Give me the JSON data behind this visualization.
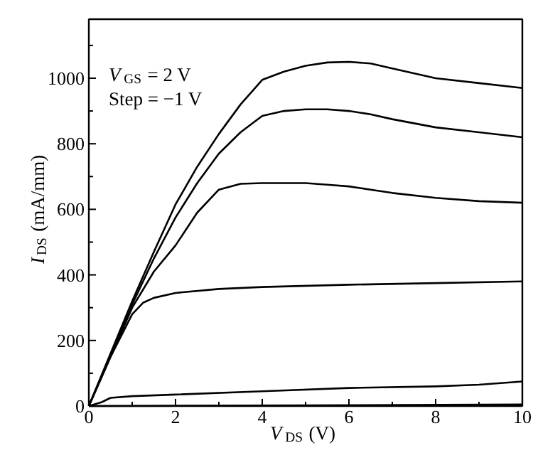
{
  "chart_data": {
    "type": "line",
    "xlabel": "V$_{DS}$ (V)",
    "ylabel": "I$_{DS}$ (mA/mm)",
    "annotations": [
      "V$_{GS}$ = 2 V",
      "Step = −1 V"
    ],
    "xlim": [
      0,
      10
    ],
    "ylim": [
      0,
      1180
    ],
    "xticks": [
      0,
      {
        "value": 1,
        "label": null
      },
      2,
      {
        "value": 3,
        "label": null
      },
      4,
      {
        "value": 5,
        "label": null
      },
      6,
      {
        "value": 7,
        "label": null
      },
      8,
      {
        "value": 9,
        "label": null
      },
      10
    ],
    "yticks": [
      0,
      {
        "value": 100,
        "label": null
      },
      200,
      {
        "value": 300,
        "label": null
      },
      400,
      {
        "value": 500,
        "label": null
      },
      600,
      {
        "value": 700,
        "label": null
      },
      800,
      {
        "value": 900,
        "label": null
      },
      1000,
      {
        "value": 1100,
        "label": null
      }
    ],
    "grid": false,
    "marker": "none",
    "line_style": "solid",
    "series": [
      {
        "color": "#000000",
        "x": [
          0,
          0.5,
          1,
          1.5,
          2,
          2.5,
          3,
          3.5,
          4,
          4.5,
          5,
          5.5,
          6,
          6.5,
          7,
          8,
          9,
          10
        ],
        "values": [
          0,
          160,
          320,
          470,
          615,
          730,
          830,
          920,
          995,
          1020,
          1038,
          1048,
          1050,
          1045,
          1030,
          1000,
          985,
          970
        ]
      },
      {
        "color": "#000000",
        "x": [
          0,
          0.5,
          1,
          1.5,
          2,
          2.5,
          3,
          3.5,
          4,
          4.5,
          5,
          5.5,
          6,
          6.5,
          7,
          8,
          9,
          10
        ],
        "values": [
          0,
          155,
          310,
          450,
          575,
          680,
          770,
          835,
          885,
          900,
          905,
          905,
          900,
          890,
          875,
          850,
          835,
          820
        ]
      },
      {
        "color": "#000000",
        "x": [
          0,
          0.5,
          1,
          1.5,
          2,
          2.5,
          3,
          3.5,
          4,
          4.5,
          5,
          5.5,
          6,
          6.5,
          7,
          8,
          9,
          10
        ],
        "values": [
          0,
          150,
          300,
          410,
          490,
          590,
          660,
          678,
          680,
          680,
          680,
          675,
          670,
          660,
          650,
          635,
          625,
          620
        ]
      },
      {
        "color": "#000000",
        "x": [
          0,
          0.5,
          1,
          1.25,
          1.5,
          2,
          3,
          4,
          6,
          8,
          10
        ],
        "values": [
          0,
          150,
          280,
          315,
          330,
          345,
          357,
          363,
          370,
          375,
          380
        ]
      },
      {
        "color": "#000000",
        "x": [
          0,
          0.3,
          0.5,
          1,
          2,
          4,
          6,
          8,
          9,
          10
        ],
        "values": [
          0,
          12,
          25,
          30,
          35,
          45,
          55,
          60,
          65,
          75
        ]
      },
      {
        "color": "#000000",
        "x": [
          0,
          5,
          10
        ],
        "values": [
          0,
          2,
          5
        ]
      }
    ]
  }
}
